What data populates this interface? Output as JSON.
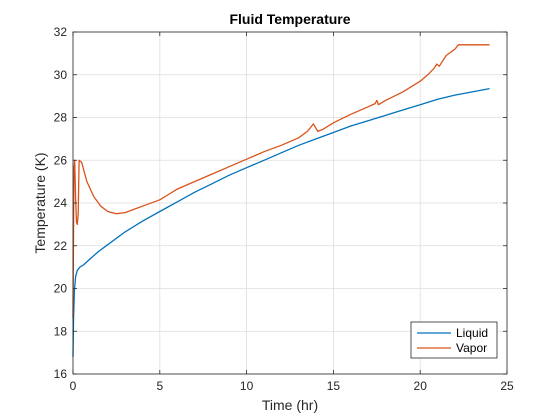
{
  "chart_data": {
    "type": "line",
    "title": "Fluid Temperature",
    "xlabel": "Time (hr)",
    "ylabel": "Temperature (K)",
    "xlim": [
      0,
      25
    ],
    "ylim": [
      16,
      32
    ],
    "xticks": [
      0,
      5,
      10,
      15,
      20,
      25
    ],
    "yticks": [
      16,
      18,
      20,
      22,
      24,
      26,
      28,
      30,
      32
    ],
    "xtick_labels": [
      "0",
      "5",
      "10",
      "15",
      "20",
      "25"
    ],
    "ytick_labels": [
      "16",
      "18",
      "20",
      "22",
      "24",
      "26",
      "28",
      "30",
      "32"
    ],
    "grid": true,
    "legend_position": "bottom-right",
    "series": [
      {
        "name": "Liquid",
        "color": "#0072BD",
        "x": [
          0,
          0.03,
          0.08,
          0.15,
          0.25,
          0.4,
          0.6,
          1,
          1.5,
          2,
          3,
          4,
          5,
          6,
          7,
          8,
          9,
          10,
          11,
          12,
          13,
          14,
          15,
          16,
          17,
          18,
          19,
          20,
          21,
          22,
          23,
          24
        ],
        "y": [
          16.8,
          18.5,
          19.9,
          20.55,
          20.85,
          21.0,
          21.1,
          21.4,
          21.75,
          22.05,
          22.65,
          23.15,
          23.6,
          24.05,
          24.5,
          24.9,
          25.3,
          25.65,
          26.0,
          26.35,
          26.7,
          27.0,
          27.3,
          27.6,
          27.85,
          28.1,
          28.35,
          28.6,
          28.85,
          29.05,
          29.2,
          29.35
        ]
      },
      {
        "name": "Vapor",
        "color": "#D95319",
        "x": [
          0,
          0.05,
          0.1,
          0.15,
          0.2,
          0.25,
          0.3,
          0.35,
          0.5,
          0.8,
          1.2,
          1.6,
          2.0,
          2.5,
          3.0,
          3.5,
          4.0,
          5.0,
          5.5,
          6.0,
          7.0,
          8.0,
          9.0,
          10.0,
          11.0,
          12.0,
          13.0,
          13.5,
          13.85,
          14.1,
          14.4,
          15.0,
          16.0,
          17.0,
          17.4,
          17.5,
          17.6,
          18.0,
          19.0,
          20.0,
          20.5,
          20.8,
          20.95,
          21.1,
          21.5,
          22.0,
          22.2,
          23.0,
          24.0
        ],
        "y": [
          18.6,
          25.5,
          26.0,
          24.2,
          23.1,
          23.0,
          23.5,
          26.0,
          25.9,
          25.0,
          24.3,
          23.85,
          23.6,
          23.5,
          23.55,
          23.7,
          23.85,
          24.15,
          24.4,
          24.65,
          25.0,
          25.35,
          25.7,
          26.05,
          26.4,
          26.7,
          27.05,
          27.35,
          27.7,
          27.35,
          27.45,
          27.75,
          28.15,
          28.5,
          28.65,
          28.8,
          28.6,
          28.8,
          29.2,
          29.7,
          30.05,
          30.3,
          30.5,
          30.4,
          30.9,
          31.2,
          31.4,
          31.4,
          31.4
        ]
      }
    ]
  }
}
